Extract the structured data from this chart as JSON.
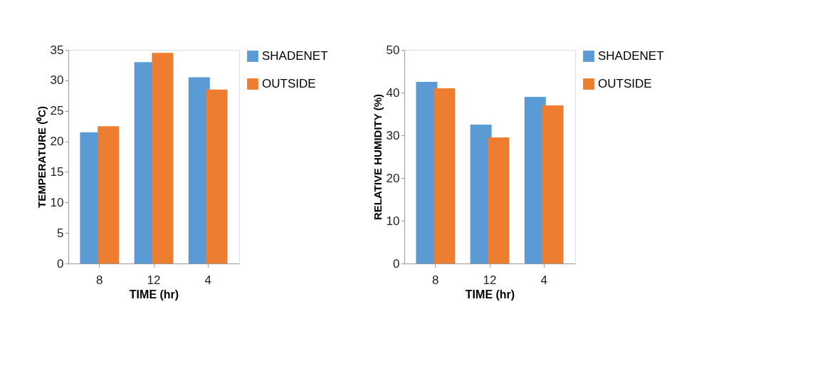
{
  "chart_data": [
    {
      "type": "bar",
      "xlabel": "TIME (hr)",
      "ylabel": "TEMPERATURE (⁰C)",
      "categories": [
        "8",
        "12",
        "4"
      ],
      "series": [
        {
          "name": "SHADENET",
          "color": "#5b9bd5",
          "values": [
            21.5,
            33,
            30.5
          ]
        },
        {
          "name": "OUTSIDE",
          "color": "#ed7d31",
          "values": [
            22.5,
            34.5,
            28.5
          ]
        }
      ],
      "ylim": [
        0,
        35
      ],
      "yticks": [
        0,
        5,
        10,
        15,
        20,
        25,
        30,
        35
      ],
      "grid": false,
      "legend": "right"
    },
    {
      "type": "bar",
      "xlabel": "TIME (hr)",
      "ylabel": "RELATIVE HUMIDITY (%)",
      "categories": [
        "8",
        "12",
        "4"
      ],
      "series": [
        {
          "name": "SHADENET",
          "color": "#5b9bd5",
          "values": [
            42.5,
            32.5,
            39
          ]
        },
        {
          "name": "OUTSIDE",
          "color": "#ed7d31",
          "values": [
            41,
            29.5,
            37
          ]
        }
      ],
      "ylim": [
        0,
        50
      ],
      "yticks": [
        0,
        10,
        20,
        30,
        40,
        50
      ],
      "grid": false,
      "legend": "right"
    }
  ]
}
